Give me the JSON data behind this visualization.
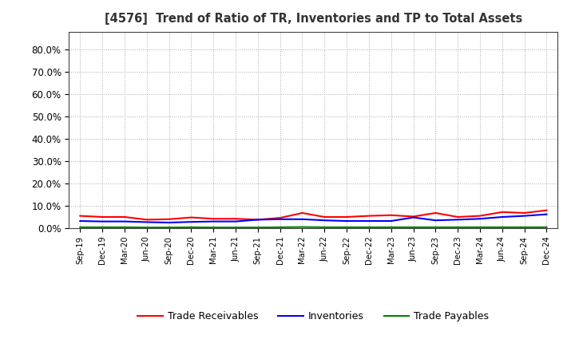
{
  "title": "[4576]  Trend of Ratio of TR, Inventories and TP to Total Assets",
  "x_labels": [
    "Sep-19",
    "Dec-19",
    "Mar-20",
    "Jun-20",
    "Sep-20",
    "Dec-20",
    "Mar-21",
    "Jun-21",
    "Sep-21",
    "Dec-21",
    "Mar-22",
    "Jun-22",
    "Sep-22",
    "Dec-22",
    "Mar-23",
    "Jun-23",
    "Sep-23",
    "Dec-23",
    "Mar-24",
    "Jun-24",
    "Sep-24",
    "Dec-24"
  ],
  "trade_receivables": [
    0.055,
    0.05,
    0.05,
    0.038,
    0.04,
    0.048,
    0.042,
    0.042,
    0.038,
    0.046,
    0.068,
    0.05,
    0.05,
    0.055,
    0.058,
    0.052,
    0.068,
    0.05,
    0.055,
    0.072,
    0.068,
    0.08
  ],
  "inventories": [
    0.032,
    0.03,
    0.03,
    0.027,
    0.025,
    0.028,
    0.03,
    0.03,
    0.038,
    0.04,
    0.04,
    0.035,
    0.032,
    0.032,
    0.032,
    0.048,
    0.035,
    0.038,
    0.042,
    0.05,
    0.055,
    0.062
  ],
  "trade_payables": [
    0.004,
    0.004,
    0.004,
    0.003,
    0.003,
    0.004,
    0.003,
    0.003,
    0.003,
    0.004,
    0.005,
    0.004,
    0.004,
    0.004,
    0.004,
    0.004,
    0.004,
    0.004,
    0.004,
    0.004,
    0.004,
    0.004
  ],
  "tr_color": "#FF0000",
  "inv_color": "#0000FF",
  "tp_color": "#008000",
  "ylim": [
    0.0,
    0.88
  ],
  "yticks": [
    0.0,
    0.1,
    0.2,
    0.3,
    0.4,
    0.5,
    0.6,
    0.7,
    0.8
  ],
  "legend_labels": [
    "Trade Receivables",
    "Inventories",
    "Trade Payables"
  ],
  "background_color": "#FFFFFF",
  "grid_color": "#AAAAAA"
}
